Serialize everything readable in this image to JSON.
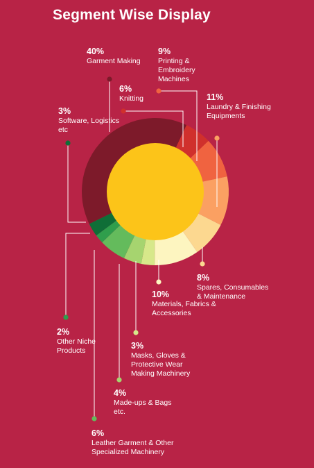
{
  "chart_data": {
    "type": "pie",
    "title": "Segment Wise Display",
    "slices": [
      {
        "label": "Garment Making",
        "value": 40,
        "pct_label": "40%",
        "color": "#7d1a2a"
      },
      {
        "label": "Knitting",
        "value": 6,
        "pct_label": "6%",
        "color": "#d0302c"
      },
      {
        "label": "Printing & Embroidery Machines",
        "value": 9,
        "pct_label": "9%",
        "color": "#f06340"
      },
      {
        "label": "Laundry & Finishing Equipments",
        "value": 11,
        "pct_label": "11%",
        "color": "#fba062"
      },
      {
        "label": "Spares, Consumables & Maintenance",
        "value": 8,
        "pct_label": "8%",
        "color": "#fcd890"
      },
      {
        "label": "Materials, Fabrics & Accessories",
        "value": 10,
        "pct_label": "10%",
        "color": "#fdf5c0"
      },
      {
        "label": "Masks, Gloves & Protective Wear Making Machinery",
        "value": 3,
        "pct_label": "3%",
        "color": "#d7e88a"
      },
      {
        "label": "Made-ups & Bags etc.",
        "value": 4,
        "pct_label": "4%",
        "color": "#a6d46f"
      },
      {
        "label": "Leather Garment & Other Specialized Machinery",
        "value": 6,
        "pct_label": "6%",
        "color": "#64bb5c"
      },
      {
        "label": "Other Niche Products",
        "value": 2,
        "pct_label": "2%",
        "color": "#2f9e4c"
      },
      {
        "label": "Software, Logistics etc",
        "value": 3,
        "pct_label": "3%",
        "color": "#0f6e37"
      }
    ],
    "center_color": "#fcc419"
  }
}
